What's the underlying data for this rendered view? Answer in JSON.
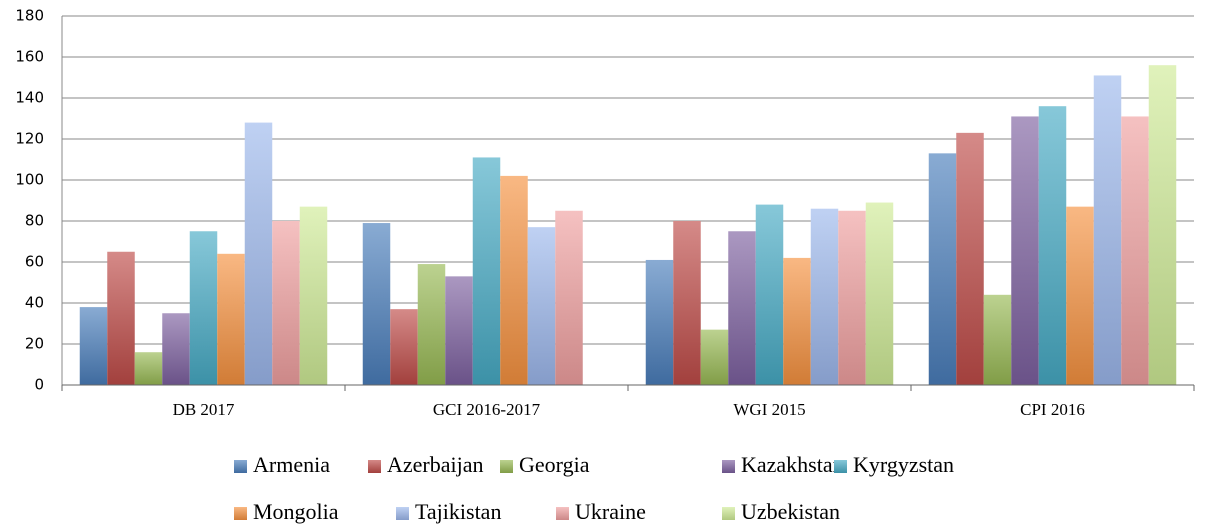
{
  "chart_data": {
    "type": "bar",
    "categories": [
      "DB 2017",
      "GCI 2016-2017",
      "WGI 2015",
      "CPI 2016"
    ],
    "series": [
      {
        "name": "Armenia",
        "color": "#4a7ebb",
        "values": [
          38,
          79,
          61,
          113
        ]
      },
      {
        "name": "Azerbaijan",
        "color": "#be4b48",
        "values": [
          65,
          37,
          80,
          123
        ]
      },
      {
        "name": "Georgia",
        "color": "#98b954",
        "values": [
          16,
          59,
          27,
          44
        ]
      },
      {
        "name": "Kazakhstan",
        "color": "#7d60a0",
        "values": [
          35,
          53,
          75,
          131
        ]
      },
      {
        "name": "Kyrgyzstan",
        "color": "#46aac5",
        "values": [
          75,
          111,
          88,
          136
        ]
      },
      {
        "name": "Mongolia",
        "color": "#f69240",
        "values": [
          64,
          102,
          62,
          87
        ]
      },
      {
        "name": "Tajikistan",
        "color": "#9db8ec",
        "values": [
          128,
          77,
          86,
          151
        ]
      },
      {
        "name": "Ukraine",
        "color": "#f0a0a0",
        "values": [
          80,
          85,
          85,
          131
        ]
      },
      {
        "name": "Uzbekistan",
        "color": "#cfeb96",
        "values": [
          87,
          null,
          89,
          156
        ]
      }
    ],
    "ylim": [
      0,
      180
    ],
    "yticks": [
      0,
      20,
      40,
      60,
      80,
      100,
      120,
      140,
      160,
      180
    ],
    "grid": true,
    "legend": "bottom"
  }
}
